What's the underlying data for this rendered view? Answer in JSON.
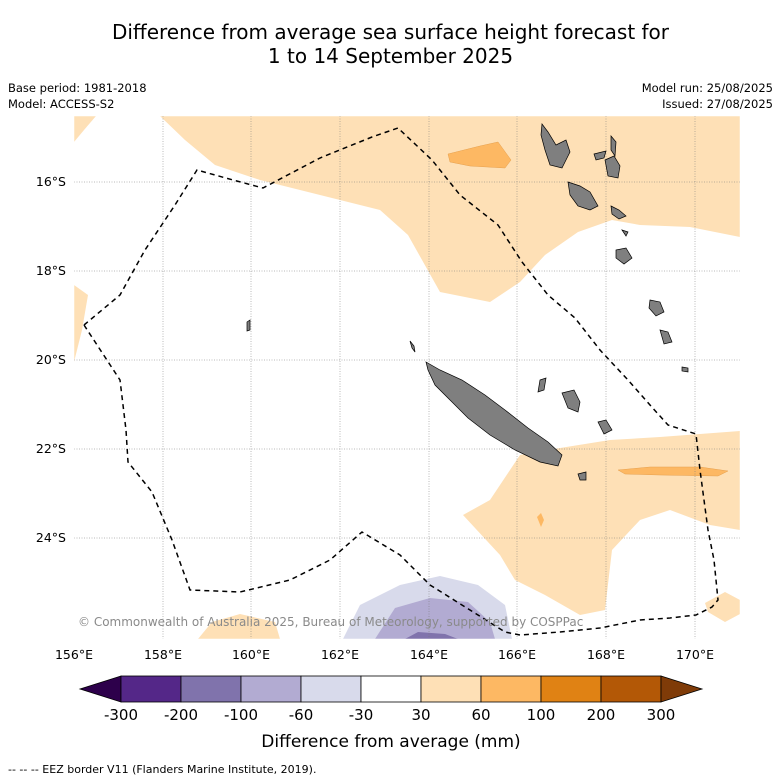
{
  "title_line1": "Difference from average sea surface height forecast for",
  "title_line2": "1 to 14 September 2025",
  "meta_left": [
    "Base period: 1981-2018",
    "Model: ACCESS-S2"
  ],
  "meta_right": [
    "Model run: 25/08/2025",
    "Issued: 27/08/2025"
  ],
  "copyright": "© Commonwealth of Australia 2025, Bureau of Meteorology, supported by COSPPac",
  "lat_labels": [
    "16°S",
    "18°S",
    "20°S",
    "22°S",
    "24°S"
  ],
  "lon_labels": [
    "156°E",
    "158°E",
    "160°E",
    "162°E",
    "164°E",
    "166°E",
    "168°E",
    "170°E"
  ],
  "colorbar": {
    "label": "Difference from average (mm)",
    "ticks": [
      "-300",
      "-200",
      "-100",
      "-60",
      "-30",
      "30",
      "60",
      "100",
      "200",
      "300"
    ],
    "colors": [
      "#2d004b",
      "#542788",
      "#8073ac",
      "#b2abd2",
      "#d8daeb",
      "#ffffff",
      "#fee0b6",
      "#fdb863",
      "#e08214",
      "#b35806",
      "#7f3b08"
    ]
  },
  "legend_note": "--  --  -- EEZ border V11 (Flanders Marine Institute, 2019).",
  "colors": {
    "land": "#7f7f7f",
    "eez": "#000000",
    "grid": "#777777"
  }
}
